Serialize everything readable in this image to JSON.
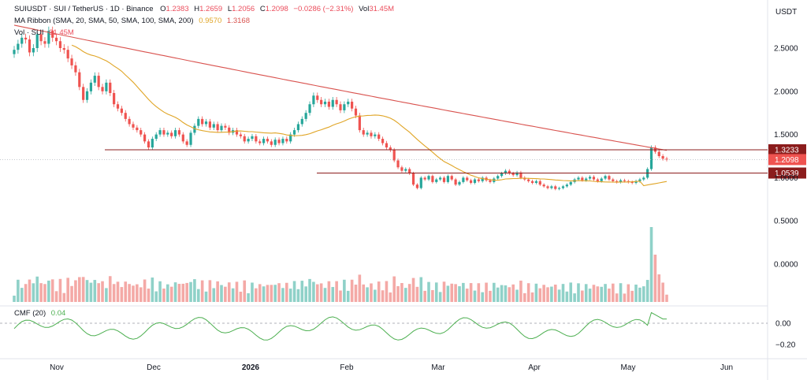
{
  "header": {
    "line1": {
      "symbol": "SUIUSDT · SUI / TetherUS · 1D · Binance",
      "o_label": "O",
      "o_value": "1.2383",
      "h_label": "H",
      "h_value": "1.2659",
      "l_label": "L",
      "l_value": "1.2056",
      "c_label": "C",
      "c_value": "1.2098",
      "change": "−0.0286 (−2.31%)",
      "vol_label": "Vol",
      "vol_value": "31.45M"
    },
    "line2": {
      "label": "MA Ribbon (SMA, 20, SMA, 50, SMA, 100, SMA, 200)",
      "v1": "0.9570",
      "v2": "1.3168"
    },
    "line3": {
      "label": "Vol · SUI",
      "value": "31.45M"
    }
  },
  "axis": {
    "currency": "USDT",
    "price_ticks": [
      {
        "label": "2.5000",
        "v": 2.5
      },
      {
        "label": "2.0000",
        "v": 2.0
      },
      {
        "label": "1.5000",
        "v": 1.5
      },
      {
        "label": "1.0000",
        "v": 1.0
      },
      {
        "label": "0.5000",
        "v": 0.5
      },
      {
        "label": "0.0000",
        "v": 0.0
      }
    ],
    "cmf_ticks": [
      {
        "label": "0.00",
        "v": 0.0
      },
      {
        "label": "−0.20",
        "v": -0.2
      }
    ]
  },
  "levels": {
    "resistance": {
      "label": "1.3233",
      "v": 1.3233
    },
    "current": {
      "label": "1.2098",
      "v": 1.2098
    },
    "support": {
      "label": "1.0539",
      "v": 1.0539
    }
  },
  "cmf": {
    "label": "CMF (20)",
    "value": "0.04"
  },
  "time_axis": [
    {
      "label": "Nov",
      "bold": false
    },
    {
      "label": "Dec",
      "bold": false
    },
    {
      "label": "2026",
      "bold": true
    },
    {
      "label": "Feb",
      "bold": false
    },
    {
      "label": "Mar",
      "bold": false
    },
    {
      "label": "Apr",
      "bold": false
    },
    {
      "label": "May",
      "bold": false
    },
    {
      "label": "Jun",
      "bold": false
    }
  ],
  "colors": {
    "up": "#26a69a",
    "down": "#ef5350",
    "ma_fast": "#e0a526",
    "ma_slow": "#d9534f",
    "cmf_line": "#4caf50",
    "level": "#8b1c1c",
    "current_tag": "#ef5350"
  },
  "chart_data": {
    "type": "candlestick",
    "title": "SUIUSDT · SUI / TetherUS · 1D · Binance",
    "x_range": [
      "2025-10-18",
      "2026-05-12"
    ],
    "y_range": [
      0,
      2.9
    ],
    "ohlc_path_close": [
      2.48,
      2.55,
      2.62,
      2.6,
      2.45,
      2.5,
      2.66,
      2.58,
      2.55,
      2.7,
      2.62,
      2.58,
      2.5,
      2.48,
      2.38,
      2.3,
      2.22,
      2.05,
      1.9,
      2.0,
      2.1,
      2.18,
      2.05,
      2.0,
      2.1,
      1.98,
      1.85,
      1.8,
      1.75,
      1.68,
      1.62,
      1.58,
      1.55,
      1.5,
      1.42,
      1.35,
      1.45,
      1.5,
      1.55,
      1.5,
      1.52,
      1.48,
      1.55,
      1.5,
      1.42,
      1.38,
      1.52,
      1.6,
      1.68,
      1.62,
      1.65,
      1.58,
      1.62,
      1.55,
      1.6,
      1.58,
      1.52,
      1.55,
      1.5,
      1.48,
      1.42,
      1.45,
      1.48,
      1.42,
      1.4,
      1.45,
      1.42,
      1.38,
      1.44,
      1.4,
      1.45,
      1.42,
      1.5,
      1.55,
      1.62,
      1.68,
      1.75,
      1.85,
      1.95,
      1.9,
      1.85,
      1.88,
      1.82,
      1.9,
      1.85,
      1.78,
      1.85,
      1.88,
      1.8,
      1.72,
      1.55,
      1.5,
      1.52,
      1.48,
      1.5,
      1.45,
      1.4,
      1.35,
      1.32,
      1.2,
      1.12,
      1.08,
      1.1,
      1.05,
      0.92,
      0.88,
      1.0,
      0.98,
      1.02,
      0.95,
      0.98,
      1.0,
      0.95,
      1.02,
      0.98,
      0.92,
      0.95,
      1.0,
      0.97,
      0.94,
      0.98,
      0.96,
      1.0,
      0.97,
      0.95,
      0.99,
      1.02,
      1.05,
      1.08,
      1.05,
      1.03,
      1.06,
      1.0,
      0.98,
      0.96,
      0.94,
      0.96,
      0.92,
      0.9,
      0.88,
      0.9,
      0.87,
      0.88,
      0.9,
      0.92,
      0.95,
      0.98,
      1.0,
      0.97,
      0.99,
      1.01,
      0.98,
      0.96,
      0.99,
      1.02,
      0.98,
      0.96,
      0.95,
      0.97,
      0.96,
      0.95,
      0.94,
      0.96,
      0.98,
      1.0,
      1.1,
      1.35,
      1.3,
      1.25,
      1.22,
      1.21
    ],
    "ma_slow_start": 2.88,
    "ma_slow_end": 1.3168,
    "ma_fast_end": 0.957,
    "cmf_range": [
      -0.3,
      0.2
    ],
    "cmf_last": 0.04
  }
}
